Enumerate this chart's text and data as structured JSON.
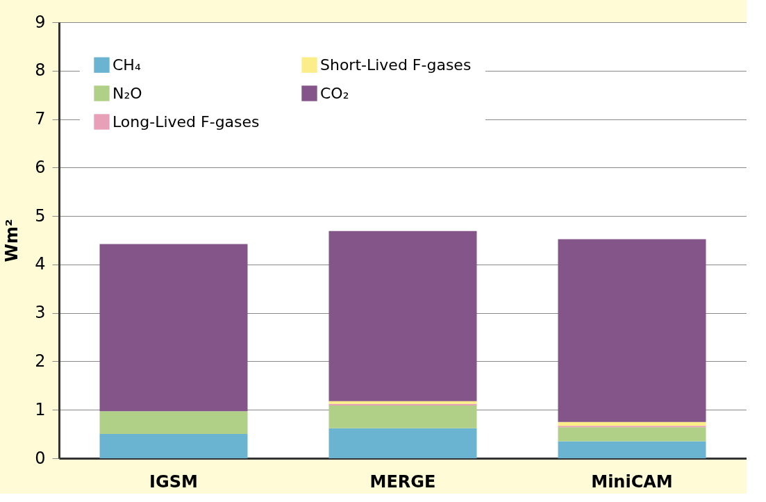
{
  "chart_data": {
    "type": "bar",
    "stacked": true,
    "ylabel": "Wm²",
    "categories": [
      "IGSM",
      "MERGE",
      "MiniCAM"
    ],
    "series": [
      {
        "name": "CH₄",
        "color": "#6ab4d2",
        "values": [
          0.5,
          0.62,
          0.35
        ]
      },
      {
        "name": "N₂O",
        "color": "#b0d088",
        "values": [
          0.47,
          0.47,
          0.29
        ]
      },
      {
        "name": "Long-Lived F-gases",
        "color": "#e8a0b8",
        "values": [
          0,
          0.03,
          0.03
        ]
      },
      {
        "name": "Short-Lived F-gases",
        "color": "#fbee88",
        "values": [
          0,
          0.06,
          0.08
        ]
      },
      {
        "name": "CO₂",
        "color": "#845588",
        "values": [
          3.45,
          3.51,
          3.77
        ]
      }
    ],
    "ylim": [
      0,
      9
    ],
    "yticks": [
      0,
      1,
      2,
      3,
      4,
      5,
      6,
      7,
      8,
      9
    ],
    "grid": "y",
    "legend": "top left"
  }
}
